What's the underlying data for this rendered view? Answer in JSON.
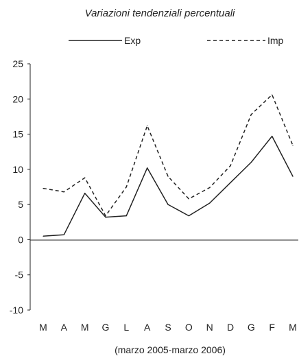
{
  "chart_data": {
    "type": "line",
    "title": "Variazioni tendenziali percentuali",
    "xlabel": "(marzo 2005-marzo 2006)",
    "ylabel": "",
    "categories": [
      "M",
      "A",
      "M",
      "G",
      "L",
      "A",
      "S",
      "O",
      "N",
      "D",
      "G",
      "F",
      "M"
    ],
    "ylim": [
      -10,
      25
    ],
    "yticks": [
      -10,
      -5,
      0,
      5,
      10,
      15,
      20,
      25
    ],
    "grid": false,
    "legend_position": "top",
    "series": [
      {
        "name": "Exp",
        "style": "solid",
        "color": "#222222",
        "values": [
          0.5,
          0.7,
          6.6,
          3.2,
          3.4,
          10.2,
          5.0,
          3.4,
          5.2,
          8.1,
          11.0,
          14.7,
          9.0
        ]
      },
      {
        "name": "Imp",
        "style": "dashed",
        "color": "#222222",
        "values": [
          7.3,
          6.8,
          8.8,
          3.4,
          7.5,
          16.2,
          9.0,
          5.8,
          7.4,
          10.5,
          17.8,
          20.6,
          13.4
        ]
      }
    ]
  }
}
